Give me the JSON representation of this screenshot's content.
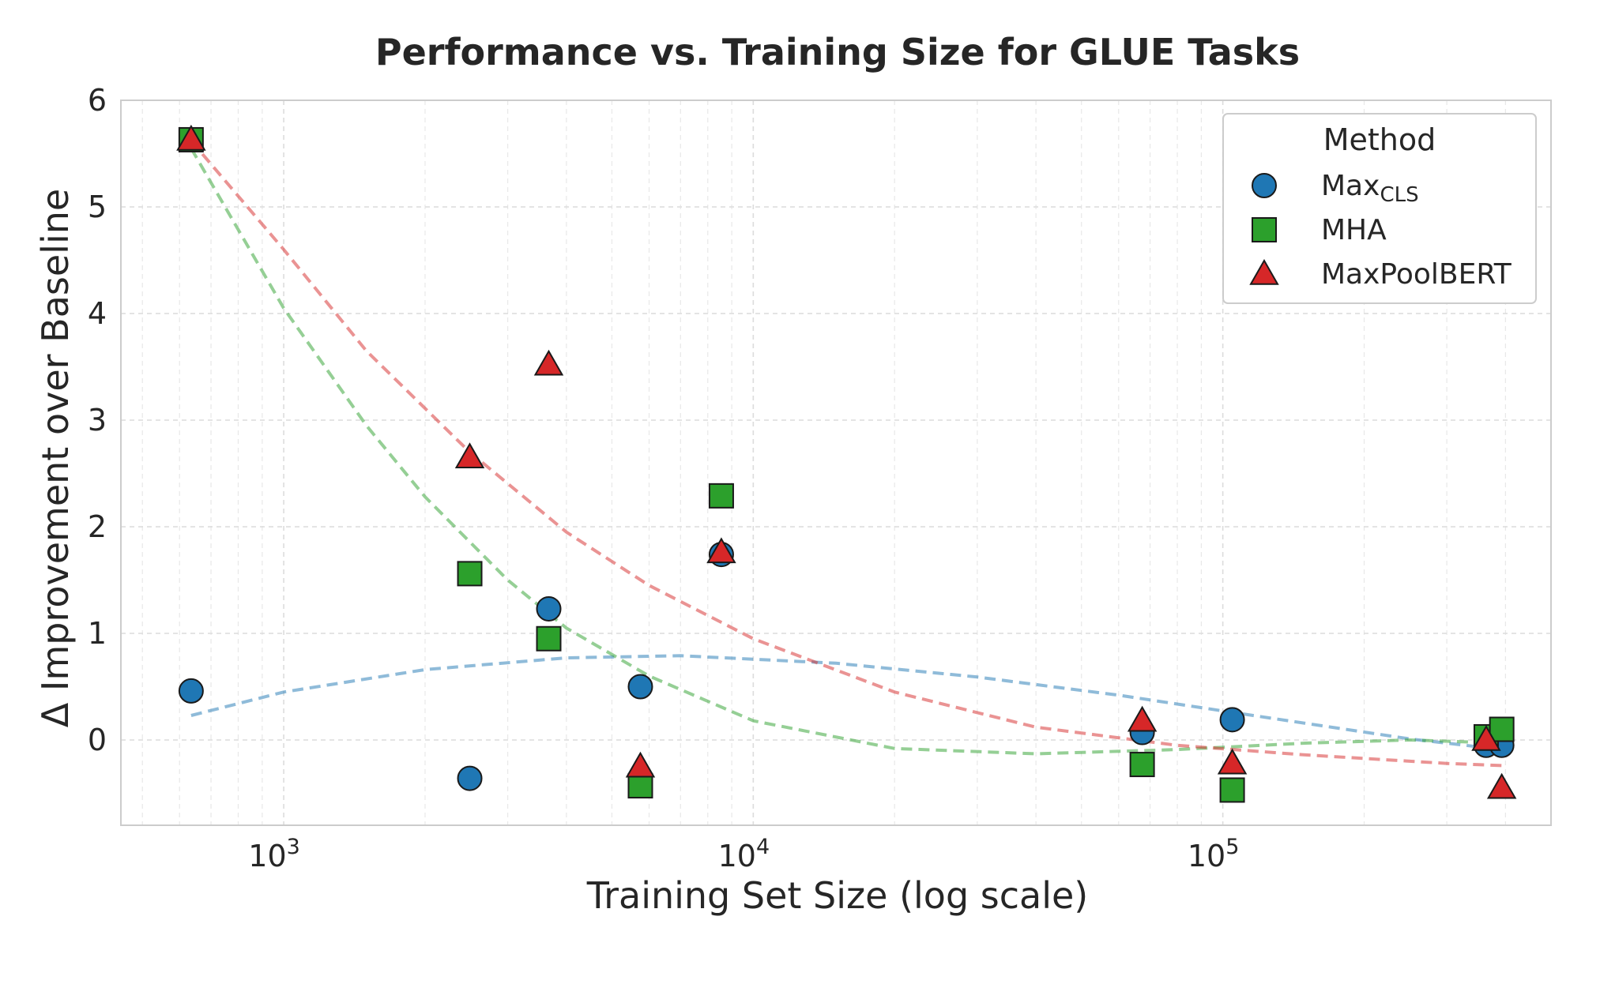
{
  "chart_data": {
    "type": "scatter",
    "title": "Performance vs. Training Size for GLUE Tasks",
    "xlabel": "Training Set Size (log scale)",
    "ylabel": "Δ Improvement over Baseline",
    "xscale": "log",
    "xlim": [
      450,
      500000
    ],
    "ylim": [
      -0.8,
      6
    ],
    "xticks": [
      {
        "value": 1000,
        "base": "10",
        "exp": "3"
      },
      {
        "value": 10000,
        "base": "10",
        "exp": "4"
      },
      {
        "value": 100000,
        "base": "10",
        "exp": "5"
      }
    ],
    "yticks": [
      0,
      1,
      2,
      3,
      4,
      5,
      6
    ],
    "grid": true,
    "legend": {
      "title": "Method",
      "placement": "top-right"
    },
    "series": [
      {
        "name": "Max",
        "name_sub": "CLS",
        "marker": "circle",
        "color": "#1f77b4",
        "points": [
          {
            "x": 635,
            "y": 0.46
          },
          {
            "x": 2490,
            "y": -0.36
          },
          {
            "x": 3668,
            "y": 1.23
          },
          {
            "x": 5749,
            "y": 0.5
          },
          {
            "x": 8551,
            "y": 1.74
          },
          {
            "x": 67349,
            "y": 0.07
          },
          {
            "x": 104743,
            "y": 0.19
          },
          {
            "x": 363846,
            "y": -0.05
          },
          {
            "x": 392702,
            "y": -0.05
          }
        ],
        "trend": [
          {
            "x": 635,
            "y": 0.23
          },
          {
            "x": 1000,
            "y": 0.45
          },
          {
            "x": 2000,
            "y": 0.66
          },
          {
            "x": 4000,
            "y": 0.77
          },
          {
            "x": 7000,
            "y": 0.79
          },
          {
            "x": 15000,
            "y": 0.72
          },
          {
            "x": 30000,
            "y": 0.59
          },
          {
            "x": 60000,
            "y": 0.42
          },
          {
            "x": 120000,
            "y": 0.22
          },
          {
            "x": 250000,
            "y": 0.01
          },
          {
            "x": 392702,
            "y": -0.09
          }
        ]
      },
      {
        "name": "MHA",
        "marker": "square",
        "color": "#2ca02c",
        "points": [
          {
            "x": 635,
            "y": 5.63
          },
          {
            "x": 2490,
            "y": 1.56
          },
          {
            "x": 3668,
            "y": 0.95
          },
          {
            "x": 5749,
            "y": -0.43
          },
          {
            "x": 8551,
            "y": 2.29
          },
          {
            "x": 67349,
            "y": -0.23
          },
          {
            "x": 104743,
            "y": -0.47
          },
          {
            "x": 363846,
            "y": 0.03
          },
          {
            "x": 392702,
            "y": 0.1
          }
        ],
        "trend": [
          {
            "x": 635,
            "y": 5.55
          },
          {
            "x": 1000,
            "y": 4.05
          },
          {
            "x": 1500,
            "y": 2.95
          },
          {
            "x": 2000,
            "y": 2.28
          },
          {
            "x": 3000,
            "y": 1.5
          },
          {
            "x": 4000,
            "y": 1.05
          },
          {
            "x": 6000,
            "y": 0.6
          },
          {
            "x": 10000,
            "y": 0.18
          },
          {
            "x": 20000,
            "y": -0.08
          },
          {
            "x": 40000,
            "y": -0.13
          },
          {
            "x": 80000,
            "y": -0.09
          },
          {
            "x": 150000,
            "y": -0.03
          },
          {
            "x": 250000,
            "y": 0.0
          },
          {
            "x": 392702,
            "y": -0.03
          }
        ]
      },
      {
        "name": "MaxPoolBERT",
        "marker": "triangle",
        "color": "#d62728",
        "points": [
          {
            "x": 635,
            "y": 5.63
          },
          {
            "x": 2490,
            "y": 2.65
          },
          {
            "x": 3668,
            "y": 3.52
          },
          {
            "x": 5749,
            "y": -0.25
          },
          {
            "x": 8551,
            "y": 1.76
          },
          {
            "x": 67349,
            "y": 0.18
          },
          {
            "x": 104743,
            "y": -0.22
          },
          {
            "x": 363846,
            "y": 0.0
          },
          {
            "x": 392702,
            "y": -0.45
          }
        ],
        "trend": [
          {
            "x": 635,
            "y": 5.62
          },
          {
            "x": 1000,
            "y": 4.6
          },
          {
            "x": 1500,
            "y": 3.65
          },
          {
            "x": 2490,
            "y": 2.7
          },
          {
            "x": 4000,
            "y": 1.95
          },
          {
            "x": 6000,
            "y": 1.45
          },
          {
            "x": 10000,
            "y": 0.95
          },
          {
            "x": 20000,
            "y": 0.45
          },
          {
            "x": 40000,
            "y": 0.12
          },
          {
            "x": 80000,
            "y": -0.05
          },
          {
            "x": 150000,
            "y": -0.14
          },
          {
            "x": 300000,
            "y": -0.22
          },
          {
            "x": 392702,
            "y": -0.24
          }
        ]
      }
    ]
  }
}
